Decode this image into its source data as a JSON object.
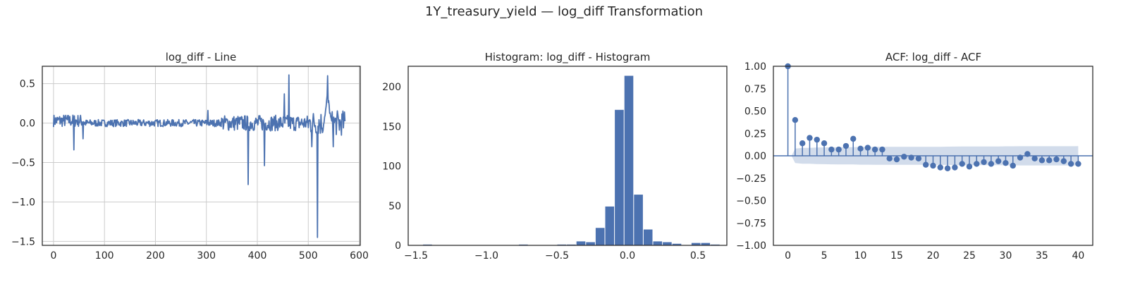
{
  "figure": {
    "suptitle": "1Y_treasury_yield — log_diff Transformation"
  },
  "colors": {
    "line": "#4c72b0",
    "grid": "#cccccc",
    "confband": "#4c72b0",
    "axis": "#262626"
  },
  "chart_data": [
    {
      "type": "line",
      "title": "log_diff - Line",
      "xlabel": "",
      "ylabel": "",
      "xlim": [
        -22,
        602
      ],
      "ylim": [
        -1.55,
        0.72
      ],
      "xticks": [
        0,
        100,
        200,
        300,
        400,
        500,
        600
      ],
      "yticks": [
        0.5,
        0.0,
        -0.5,
        -1.0,
        -1.5
      ],
      "ytick_labels": [
        "0.5",
        "0.0",
        "−0.5",
        "−1.0",
        "−1.5"
      ],
      "grid": true,
      "n_points": 573,
      "spikes": [
        {
          "x": 40,
          "y": -0.34
        },
        {
          "x": 58,
          "y": -0.2
        },
        {
          "x": 303,
          "y": 0.16
        },
        {
          "x": 382,
          "y": -0.78
        },
        {
          "x": 414,
          "y": -0.54
        },
        {
          "x": 453,
          "y": 0.37
        },
        {
          "x": 462,
          "y": 0.61
        },
        {
          "x": 507,
          "y": -0.3
        },
        {
          "x": 518,
          "y": -1.45
        },
        {
          "x": 538,
          "y": 0.6
        },
        {
          "x": 549,
          "y": -0.3
        }
      ]
    },
    {
      "type": "bar",
      "title": "Histogram: log_diff - Histogram",
      "xlabel": "",
      "ylabel": "",
      "xlim": [
        -1.555,
        0.705
      ],
      "ylim": [
        0,
        226
      ],
      "xticks": [
        -1.5,
        -1.0,
        -0.5,
        0.0,
        0.5
      ],
      "xtick_labels": [
        "−1.5",
        "−1.0",
        "−0.5",
        "0.0",
        "0.5"
      ],
      "yticks": [
        0,
        50,
        100,
        150,
        200
      ],
      "grid": false,
      "bin_edges": [
        -1.452,
        -1.384,
        -1.316,
        -1.248,
        -1.18,
        -1.112,
        -1.044,
        -0.976,
        -0.908,
        -0.84,
        -0.772,
        -0.704,
        -0.636,
        -0.568,
        -0.5,
        -0.432,
        -0.364,
        -0.296,
        -0.228,
        -0.16,
        -0.092,
        -0.024,
        0.044,
        0.112,
        0.18,
        0.248,
        0.316,
        0.384,
        0.452,
        0.52,
        0.588,
        0.656
      ],
      "counts": [
        1,
        0,
        0,
        0,
        0,
        0,
        0,
        0,
        0,
        0,
        1,
        0,
        0,
        0,
        1,
        1,
        5,
        4,
        22,
        49,
        171,
        214,
        64,
        20,
        5,
        4,
        2,
        0,
        3,
        3,
        1
      ]
    },
    {
      "type": "scatter",
      "title": "ACF: log_diff - ACF",
      "xlabel": "",
      "ylabel": "",
      "xlim": [
        -2,
        42
      ],
      "ylim": [
        -1.0,
        1.0
      ],
      "xticks": [
        0,
        5,
        10,
        15,
        20,
        25,
        30,
        35,
        40
      ],
      "yticks": [
        1.0,
        0.75,
        0.5,
        0.25,
        0.0,
        -0.25,
        -0.5,
        -0.75,
        -1.0
      ],
      "ytick_labels": [
        "1.00",
        "0.75",
        "0.50",
        "0.25",
        "0.00",
        "−0.25",
        "−0.50",
        "−0.75",
        "−1.00"
      ],
      "grid": false,
      "lags": [
        0,
        1,
        2,
        3,
        4,
        5,
        6,
        7,
        8,
        9,
        10,
        11,
        12,
        13,
        14,
        15,
        16,
        17,
        18,
        19,
        20,
        21,
        22,
        23,
        24,
        25,
        26,
        27,
        28,
        29,
        30,
        31,
        32,
        33,
        34,
        35,
        36,
        37,
        38,
        39,
        40
      ],
      "acf": [
        1.0,
        0.4,
        0.14,
        0.2,
        0.18,
        0.14,
        0.07,
        0.07,
        0.11,
        0.19,
        0.08,
        0.09,
        0.07,
        0.07,
        -0.03,
        -0.04,
        -0.01,
        -0.02,
        -0.03,
        -0.1,
        -0.11,
        -0.13,
        -0.14,
        -0.13,
        -0.09,
        -0.12,
        -0.09,
        -0.07,
        -0.09,
        -0.06,
        -0.08,
        -0.11,
        -0.02,
        0.02,
        -0.03,
        -0.05,
        -0.05,
        -0.04,
        -0.06,
        -0.09,
        -0.09
      ],
      "confint_upper": [
        0.0,
        0.08,
        0.088,
        0.089,
        0.092,
        0.094,
        0.095,
        0.096,
        0.096,
        0.097,
        0.099,
        0.099,
        0.1,
        0.1,
        0.1,
        0.1,
        0.1,
        0.1,
        0.1,
        0.1,
        0.1,
        0.101,
        0.102,
        0.103,
        0.104,
        0.104,
        0.105,
        0.105,
        0.105,
        0.105,
        0.106,
        0.106,
        0.107,
        0.107,
        0.107,
        0.107,
        0.107,
        0.107,
        0.107,
        0.107,
        0.108
      ]
    }
  ]
}
